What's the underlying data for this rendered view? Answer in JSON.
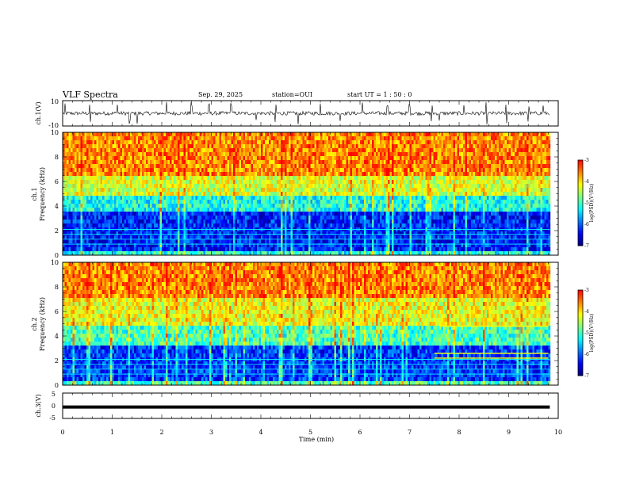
{
  "header": {
    "title": "VLF Spectra",
    "date": "Sep. 29, 2025",
    "station": "station=OUI",
    "start_ut": "start  UT =   1 : 50 : 0"
  },
  "colors": {
    "colormap": [
      "#00007f",
      "#0000ff",
      "#007fff",
      "#00ffff",
      "#7fff7f",
      "#ffff00",
      "#ff7f00",
      "#ff0000",
      "#ffffff"
    ],
    "trace": "#000000",
    "frame": "#000000"
  },
  "chart_data": [
    {
      "type": "line",
      "name": "ch1-waveform",
      "ylabel": "ch.1(V)",
      "yticks": [
        "10",
        "-10"
      ],
      "ylim": [
        -10,
        10
      ],
      "xlim": [
        0,
        10
      ],
      "baseline": 0,
      "noise_amplitude": 1.5,
      "spike_times": [
        0.05,
        0.55,
        1.1,
        1.35,
        1.5,
        2.1,
        2.6,
        2.95,
        3.4,
        3.9,
        4.3,
        4.75,
        5.2,
        5.6,
        6.05,
        6.55,
        7.0,
        7.45,
        7.6,
        8.1,
        8.55,
        8.95,
        9.4,
        9.7
      ]
    },
    {
      "type": "heatmap",
      "name": "ch1-spectrogram",
      "ylabel_top": "ch.1",
      "ylabel": "Frequency (kHz)",
      "yticks": [
        "0",
        "2",
        "4",
        "6",
        "8",
        "10"
      ],
      "ylim": [
        0,
        10
      ],
      "xlim": [
        0,
        10
      ],
      "colorbar": {
        "label": "log(PSD)(V²/Hz)",
        "ticks": [
          "-3",
          "-4",
          "-5",
          "-6",
          "-7"
        ],
        "range": [
          -7,
          -3
        ]
      },
      "bands": [
        {
          "freq_khz": [
            0,
            0.4
          ],
          "log_psd": -5.2
        },
        {
          "freq_khz": [
            0.4,
            3.5
          ],
          "log_psd": -6.3
        },
        {
          "freq_khz": [
            3.5,
            5.0
          ],
          "log_psd": -5.2
        },
        {
          "freq_khz": [
            5.0,
            6.5
          ],
          "log_psd": -4.3
        },
        {
          "freq_khz": [
            6.5,
            10
          ],
          "log_psd": -3.6
        }
      ]
    },
    {
      "type": "heatmap",
      "name": "ch2-spectrogram",
      "ylabel_top": "ch.2",
      "ylabel": "Frequency (kHz)",
      "yticks": [
        "0",
        "2",
        "4",
        "6",
        "8",
        "10"
      ],
      "ylim": [
        0,
        10
      ],
      "xlim": [
        0,
        10
      ],
      "colorbar": {
        "label": "log(PSD)(V²/Hz)",
        "ticks": [
          "-3",
          "-4",
          "-5",
          "-6",
          "-7"
        ],
        "range": [
          -7,
          -3
        ]
      },
      "bands": [
        {
          "freq_khz": [
            0,
            0.4
          ],
          "log_psd": -5.0
        },
        {
          "freq_khz": [
            0.4,
            3.2
          ],
          "log_psd": -6.2
        },
        {
          "freq_khz": [
            3.2,
            5.0
          ],
          "log_psd": -5.0
        },
        {
          "freq_khz": [
            5.0,
            7.0
          ],
          "log_psd": -4.2
        },
        {
          "freq_khz": [
            7.0,
            10
          ],
          "log_psd": -3.6
        }
      ],
      "interference_lines": [
        {
          "freq_khz": 4.8,
          "from_min": 7.6,
          "to_min": 9.8
        },
        {
          "freq_khz": 2.6,
          "from_min": 7.5,
          "to_min": 9.8
        },
        {
          "freq_khz": 2.2,
          "from_min": 7.5,
          "to_min": 9.8
        }
      ]
    },
    {
      "type": "line",
      "name": "ch3-waveform",
      "ylabel": "ch.3(V)",
      "yticks": [
        "5",
        "0",
        "-5"
      ],
      "ylim": [
        -5,
        5
      ],
      "xlim": [
        0,
        10
      ],
      "baseline": -0.5
    }
  ],
  "xaxis": {
    "label": "Time (min)",
    "ticks": [
      "0",
      "1",
      "2",
      "3",
      "4",
      "5",
      "6",
      "7",
      "8",
      "9",
      "10"
    ],
    "range": [
      0,
      10
    ],
    "data_end": 9.83
  }
}
